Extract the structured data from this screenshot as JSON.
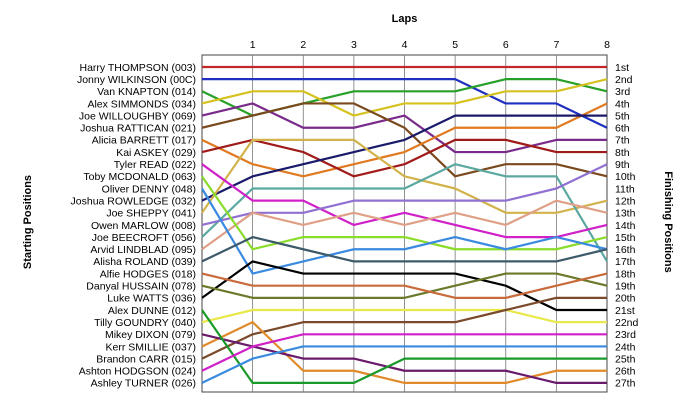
{
  "chart_data": {
    "type": "line",
    "title": "",
    "top_axis_label": "Laps",
    "left_axis_label": "Starting Positions",
    "right_axis_label": "Finishing Positions",
    "x": [
      0,
      1,
      2,
      3,
      4,
      5,
      6,
      7,
      8
    ],
    "x_tick_labels": [
      "1",
      "2",
      "3",
      "4",
      "5",
      "6",
      "7",
      "8"
    ],
    "finishing_labels": [
      "1st",
      "2nd",
      "3rd",
      "4th",
      "5th",
      "6th",
      "7th",
      "8th",
      "9th",
      "10th",
      "11th",
      "12th",
      "13th",
      "14th",
      "15th",
      "16th",
      "17th",
      "18th",
      "19th",
      "20th",
      "21st",
      "22nd",
      "23rd",
      "24th",
      "25th",
      "26th",
      "27th"
    ],
    "grid": true,
    "series": [
      {
        "name": "Harry THOMPSON (003)",
        "color": "#c0282a",
        "values": [
          1,
          1,
          1,
          1,
          1,
          1,
          1,
          1,
          1
        ]
      },
      {
        "name": "Jonny WILKINSON (00C)",
        "color": "#1f2fbf",
        "values": [
          2,
          2,
          2,
          2,
          2,
          2,
          4,
          4,
          6
        ]
      },
      {
        "name": "Van KNAPTON (014)",
        "color": "#28a028",
        "values": [
          3,
          5,
          4,
          3,
          3,
          3,
          2,
          2,
          3
        ]
      },
      {
        "name": "Alex SIMMONDS (034)",
        "color": "#d6c21e",
        "values": [
          4,
          3,
          3,
          5,
          4,
          4,
          3,
          3,
          2
        ]
      },
      {
        "name": "Joe WILLOUGHBY (069)",
        "color": "#7a2a8a",
        "values": [
          5,
          4,
          6,
          6,
          5,
          8,
          8,
          7,
          7
        ]
      },
      {
        "name": "Joshua RATTICAN (021)",
        "color": "#7a4a1e",
        "values": [
          6,
          5,
          4,
          4,
          6,
          10,
          9,
          9,
          10
        ]
      },
      {
        "name": "Alicia BARRETT (017)",
        "color": "#e07a20",
        "values": [
          7,
          9,
          10,
          9,
          8,
          6,
          6,
          6,
          4
        ]
      },
      {
        "name": "Kai ASKEY (029)",
        "color": "#a01a1a",
        "values": [
          8,
          7,
          8,
          10,
          9,
          7,
          7,
          8,
          8
        ]
      },
      {
        "name": "Joshua ROWLEDGE (032)",
        "color": "#1a1a6a",
        "values": [
          12,
          10,
          9,
          8,
          7,
          5,
          5,
          5,
          5
        ]
      },
      {
        "name": "Joe SHEPPY (041)",
        "color": "#d2b24a",
        "values": [
          13,
          7,
          7,
          7,
          10,
          11,
          13,
          13,
          12
        ]
      },
      {
        "name": "Joe BEECROFT (056)",
        "color": "#5aa8a0",
        "values": [
          15,
          11,
          11,
          11,
          11,
          9,
          10,
          10,
          17
        ]
      },
      {
        "name": "Tyler READ (022)",
        "color": "#d020c8",
        "values": [
          9,
          12,
          12,
          14,
          13,
          14,
          15,
          15,
          14
        ]
      },
      {
        "name": "Owen MARLOW (008)",
        "color": "#9070d0",
        "values": [
          14,
          13,
          13,
          12,
          12,
          12,
          12,
          11,
          9
        ]
      },
      {
        "name": "Arvid LINDBLAD (095)",
        "color": "#e0a088",
        "values": [
          16,
          13,
          14,
          13,
          14,
          13,
          14,
          12,
          13
        ]
      },
      {
        "name": "Toby MCDONALD (063)",
        "color": "#8adc2a",
        "values": [
          10,
          16,
          15,
          15,
          15,
          16,
          16,
          16,
          15
        ]
      },
      {
        "name": "Oliver DENNY (048)",
        "color": "#3a8ae0",
        "values": [
          11,
          18,
          17,
          16,
          16,
          15,
          16,
          15,
          16
        ]
      },
      {
        "name": "Alisha ROLAND (039)",
        "color": "#3c5a6a",
        "values": [
          17,
          15,
          16,
          17,
          17,
          17,
          17,
          17,
          16
        ]
      },
      {
        "name": "Luke WATTS (036)",
        "color": "#000000",
        "values": [
          20,
          17,
          18,
          18,
          18,
          18,
          19,
          21,
          21
        ]
      },
      {
        "name": "Danyal HUSSAIN (078)",
        "color": "#6a7a2a",
        "values": [
          19,
          20,
          20,
          20,
          20,
          19,
          18,
          18,
          19
        ]
      },
      {
        "name": "Alfie HODGES (018)",
        "color": "#c86a3a",
        "values": [
          18,
          19,
          19,
          19,
          19,
          20,
          20,
          19,
          18
        ]
      },
      {
        "name": "Tilly GOUNDRY (040)",
        "color": "#e8e84a",
        "values": [
          22,
          21,
          21,
          21,
          21,
          21,
          21,
          22,
          22
        ]
      },
      {
        "name": "Brandon CARR (015)",
        "color": "#7a4a2a",
        "values": [
          25,
          23,
          22,
          22,
          22,
          22,
          21,
          20,
          20
        ]
      },
      {
        "name": "Kerr SMILLIE (037)",
        "color": "#e08a2a",
        "values": [
          24,
          22,
          26,
          26,
          27,
          27,
          27,
          26,
          26
        ]
      },
      {
        "name": "Mikey DIXON (079)",
        "color": "#6a1a6a",
        "values": [
          23,
          24,
          25,
          25,
          26,
          26,
          26,
          27,
          27
        ]
      },
      {
        "name": "Alex DUNNE (012)",
        "color": "#1a9a2a",
        "values": [
          21,
          27,
          27,
          27,
          25,
          25,
          25,
          25,
          25
        ]
      },
      {
        "name": "Ashley TURNER (026)",
        "color": "#3a8ae0",
        "values": [
          27,
          25,
          24,
          24,
          24,
          24,
          24,
          24,
          24
        ]
      },
      {
        "name": "Ashton HODGSON (024)",
        "color": "#d020c8",
        "values": [
          26,
          24,
          23,
          23,
          23,
          23,
          23,
          23,
          23
        ]
      }
    ]
  }
}
